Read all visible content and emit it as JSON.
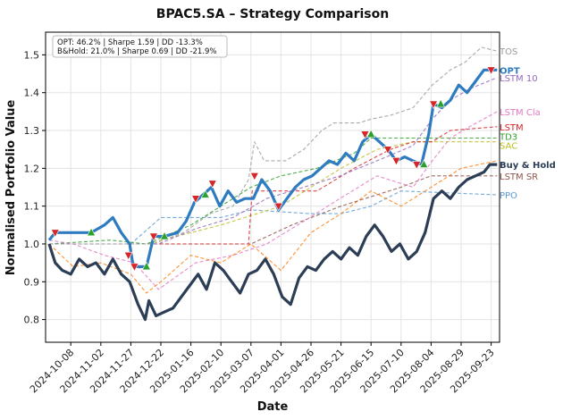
{
  "chart_data": {
    "type": "line",
    "title": "BPAC5.SA – Strategy Comparison",
    "xlabel": "Date",
    "ylabel": "Normalised Portfolio Value",
    "xlim": [
      "2024-09-17",
      "2025-09-30"
    ],
    "ylim": [
      0.74,
      1.56
    ],
    "x_ticks": [
      "2024-10-08",
      "2024-11-02",
      "2024-11-27",
      "2024-12-22",
      "2025-01-16",
      "2025-02-10",
      "2025-03-07",
      "2025-04-01",
      "2025-04-26",
      "2025-05-21",
      "2025-06-15",
      "2025-07-10",
      "2025-08-04",
      "2025-08-29",
      "2025-09-23"
    ],
    "y_ticks": [
      0.8,
      0.9,
      1.0,
      1.1,
      1.2,
      1.3,
      1.4,
      1.5
    ],
    "grid": true,
    "stats_box": {
      "lines": [
        "OPT: 46.2% | Sharpe 1.59 | DD -13.3%",
        "B&Hold: 21.0% | Sharpe 0.69 | DD -21.9%"
      ],
      "placement": "top-left"
    },
    "series": [
      {
        "name": "Buy & Hold",
        "color": "#2c3e55",
        "style": "solid-thick",
        "points": [
          [
            "2024-09-20",
            1.0
          ],
          [
            "2024-09-25",
            0.95
          ],
          [
            "2024-10-01",
            0.93
          ],
          [
            "2024-10-08",
            0.92
          ],
          [
            "2024-10-15",
            0.96
          ],
          [
            "2024-10-22",
            0.94
          ],
          [
            "2024-10-29",
            0.95
          ],
          [
            "2024-11-05",
            0.92
          ],
          [
            "2024-11-12",
            0.96
          ],
          [
            "2024-11-19",
            0.92
          ],
          [
            "2024-11-26",
            0.9
          ],
          [
            "2024-12-03",
            0.84
          ],
          [
            "2024-12-09",
            0.8
          ],
          [
            "2024-12-12",
            0.85
          ],
          [
            "2024-12-18",
            0.81
          ],
          [
            "2024-12-25",
            0.82
          ],
          [
            "2025-01-01",
            0.83
          ],
          [
            "2025-01-08",
            0.86
          ],
          [
            "2025-01-15",
            0.89
          ],
          [
            "2025-01-22",
            0.92
          ],
          [
            "2025-01-29",
            0.88
          ],
          [
            "2025-02-05",
            0.95
          ],
          [
            "2025-02-12",
            0.93
          ],
          [
            "2025-02-19",
            0.9
          ],
          [
            "2025-02-26",
            0.87
          ],
          [
            "2025-03-05",
            0.92
          ],
          [
            "2025-03-12",
            0.93
          ],
          [
            "2025-03-19",
            0.96
          ],
          [
            "2025-03-26",
            0.92
          ],
          [
            "2025-04-02",
            0.86
          ],
          [
            "2025-04-09",
            0.84
          ],
          [
            "2025-04-16",
            0.91
          ],
          [
            "2025-04-23",
            0.94
          ],
          [
            "2025-04-30",
            0.93
          ],
          [
            "2025-05-07",
            0.96
          ],
          [
            "2025-05-14",
            0.98
          ],
          [
            "2025-05-21",
            0.96
          ],
          [
            "2025-05-28",
            0.99
          ],
          [
            "2025-06-04",
            0.97
          ],
          [
            "2025-06-11",
            1.02
          ],
          [
            "2025-06-18",
            1.05
          ],
          [
            "2025-06-25",
            1.02
          ],
          [
            "2025-07-02",
            0.98
          ],
          [
            "2025-07-09",
            1.0
          ],
          [
            "2025-07-16",
            0.96
          ],
          [
            "2025-07-23",
            0.98
          ],
          [
            "2025-07-30",
            1.03
          ],
          [
            "2025-08-06",
            1.12
          ],
          [
            "2025-08-13",
            1.14
          ],
          [
            "2025-08-20",
            1.12
          ],
          [
            "2025-08-27",
            1.15
          ],
          [
            "2025-09-03",
            1.17
          ],
          [
            "2025-09-10",
            1.18
          ],
          [
            "2025-09-17",
            1.19
          ],
          [
            "2025-09-22",
            1.21
          ],
          [
            "2025-09-28",
            1.21
          ]
        ]
      },
      {
        "name": "OPT",
        "color": "#2e7bbf",
        "style": "solid-thick",
        "points": [
          [
            "2024-09-20",
            1.01
          ],
          [
            "2024-09-25",
            1.03
          ],
          [
            "2024-10-05",
            1.03
          ],
          [
            "2024-10-15",
            1.03
          ],
          [
            "2024-10-25",
            1.03
          ],
          [
            "2024-11-05",
            1.05
          ],
          [
            "2024-11-12",
            1.07
          ],
          [
            "2024-11-19",
            1.03
          ],
          [
            "2024-11-26",
            1.0
          ],
          [
            "2024-11-29",
            0.94
          ],
          [
            "2024-12-10",
            0.94
          ],
          [
            "2024-12-16",
            1.02
          ],
          [
            "2024-12-25",
            1.02
          ],
          [
            "2025-01-05",
            1.03
          ],
          [
            "2025-01-12",
            1.06
          ],
          [
            "2025-01-19",
            1.11
          ],
          [
            "2025-01-26",
            1.13
          ],
          [
            "2025-02-02",
            1.15
          ],
          [
            "2025-02-09",
            1.1
          ],
          [
            "2025-02-16",
            1.14
          ],
          [
            "2025-02-23",
            1.11
          ],
          [
            "2025-03-02",
            1.12
          ],
          [
            "2025-03-09",
            1.12
          ],
          [
            "2025-03-16",
            1.17
          ],
          [
            "2025-03-23",
            1.14
          ],
          [
            "2025-03-30",
            1.09
          ],
          [
            "2025-04-06",
            1.12
          ],
          [
            "2025-04-13",
            1.15
          ],
          [
            "2025-04-20",
            1.17
          ],
          [
            "2025-04-27",
            1.18
          ],
          [
            "2025-05-04",
            1.2
          ],
          [
            "2025-05-11",
            1.22
          ],
          [
            "2025-05-18",
            1.21
          ],
          [
            "2025-05-25",
            1.24
          ],
          [
            "2025-06-01",
            1.22
          ],
          [
            "2025-06-08",
            1.27
          ],
          [
            "2025-06-15",
            1.29
          ],
          [
            "2025-06-22",
            1.27
          ],
          [
            "2025-06-29",
            1.25
          ],
          [
            "2025-07-06",
            1.22
          ],
          [
            "2025-07-13",
            1.23
          ],
          [
            "2025-07-20",
            1.22
          ],
          [
            "2025-07-27",
            1.21
          ],
          [
            "2025-08-02",
            1.29
          ],
          [
            "2025-08-06",
            1.37
          ],
          [
            "2025-08-13",
            1.36
          ],
          [
            "2025-08-20",
            1.38
          ],
          [
            "2025-08-27",
            1.42
          ],
          [
            "2025-09-03",
            1.4
          ],
          [
            "2025-09-10",
            1.43
          ],
          [
            "2025-09-17",
            1.46
          ],
          [
            "2025-09-23",
            1.46
          ],
          [
            "2025-09-28",
            1.46
          ]
        ]
      },
      {
        "name": "TOS",
        "color": "#9b9b9b",
        "style": "dashed",
        "points": [
          [
            "2024-09-20",
            1.0
          ],
          [
            "2024-10-20",
            1.0
          ],
          [
            "2024-11-30",
            1.0
          ],
          [
            "2024-12-15",
            1.0
          ],
          [
            "2025-01-10",
            1.03
          ],
          [
            "2025-02-01",
            1.08
          ],
          [
            "2025-02-20",
            1.1
          ],
          [
            "2025-03-05",
            1.17
          ],
          [
            "2025-03-10",
            1.27
          ],
          [
            "2025-03-18",
            1.22
          ],
          [
            "2025-04-05",
            1.22
          ],
          [
            "2025-04-20",
            1.25
          ],
          [
            "2025-05-05",
            1.3
          ],
          [
            "2025-05-15",
            1.32
          ],
          [
            "2025-05-25",
            1.32
          ],
          [
            "2025-06-05",
            1.32
          ],
          [
            "2025-06-15",
            1.33
          ],
          [
            "2025-07-01",
            1.34
          ],
          [
            "2025-07-20",
            1.36
          ],
          [
            "2025-08-05",
            1.42
          ],
          [
            "2025-08-20",
            1.46
          ],
          [
            "2025-09-01",
            1.48
          ],
          [
            "2025-09-15",
            1.52
          ],
          [
            "2025-09-28",
            1.51
          ]
        ]
      },
      {
        "name": "LSTM 10",
        "color": "#9467bd",
        "style": "dashed",
        "points": [
          [
            "2024-09-20",
            1.0
          ],
          [
            "2024-10-20",
            1.0
          ],
          [
            "2024-11-30",
            1.0
          ],
          [
            "2024-12-20",
            1.0
          ],
          [
            "2025-01-20",
            1.04
          ],
          [
            "2025-02-20",
            1.07
          ],
          [
            "2025-03-20",
            1.12
          ],
          [
            "2025-04-20",
            1.15
          ],
          [
            "2025-05-20",
            1.18
          ],
          [
            "2025-06-20",
            1.22
          ],
          [
            "2025-07-20",
            1.26
          ],
          [
            "2025-08-05",
            1.33
          ],
          [
            "2025-08-20",
            1.38
          ],
          [
            "2025-09-05",
            1.41
          ],
          [
            "2025-09-28",
            1.44
          ]
        ]
      },
      {
        "name": "LSTM Cla",
        "color": "#e377c2",
        "style": "dashed",
        "points": [
          [
            "2024-09-20",
            1.01
          ],
          [
            "2024-10-10",
            1.0
          ],
          [
            "2024-11-05",
            0.97
          ],
          [
            "2024-11-30",
            0.95
          ],
          [
            "2024-12-20",
            0.88
          ],
          [
            "2025-01-20",
            0.95
          ],
          [
            "2025-02-20",
            0.97
          ],
          [
            "2025-03-20",
            1.0
          ],
          [
            "2025-04-20",
            1.06
          ],
          [
            "2025-05-20",
            1.12
          ],
          [
            "2025-06-20",
            1.18
          ],
          [
            "2025-07-20",
            1.15
          ],
          [
            "2025-08-05",
            1.22
          ],
          [
            "2025-08-20",
            1.28
          ],
          [
            "2025-09-05",
            1.31
          ],
          [
            "2025-09-28",
            1.35
          ]
        ]
      },
      {
        "name": "LSTM",
        "color": "#d62728",
        "style": "dashed",
        "points": [
          [
            "2024-09-20",
            1.0
          ],
          [
            "2024-11-30",
            1.0
          ],
          [
            "2025-01-15",
            1.0
          ],
          [
            "2025-03-05",
            1.0
          ],
          [
            "2025-03-08",
            1.14
          ],
          [
            "2025-05-01",
            1.14
          ],
          [
            "2025-06-01",
            1.2
          ],
          [
            "2025-07-01",
            1.25
          ],
          [
            "2025-07-20",
            1.27
          ],
          [
            "2025-08-05",
            1.27
          ],
          [
            "2025-08-20",
            1.3
          ],
          [
            "2025-09-28",
            1.31
          ]
        ]
      },
      {
        "name": "TD3",
        "color": "#2ca02c",
        "style": "dashed",
        "points": [
          [
            "2024-09-20",
            1.0
          ],
          [
            "2024-11-10",
            1.01
          ],
          [
            "2024-12-10",
            1.0
          ],
          [
            "2025-01-16",
            1.05
          ],
          [
            "2025-02-10",
            1.1
          ],
          [
            "2025-03-07",
            1.15
          ],
          [
            "2025-04-01",
            1.18
          ],
          [
            "2025-05-01",
            1.2
          ],
          [
            "2025-06-01",
            1.24
          ],
          [
            "2025-06-15",
            1.28
          ],
          [
            "2025-07-10",
            1.28
          ],
          [
            "2025-08-04",
            1.28
          ],
          [
            "2025-09-28",
            1.28
          ]
        ]
      },
      {
        "name": "SAC",
        "color": "#bcbd22",
        "style": "dashed",
        "points": [
          [
            "2024-09-20",
            1.0
          ],
          [
            "2024-12-10",
            1.0
          ],
          [
            "2025-02-10",
            1.05
          ],
          [
            "2025-04-01",
            1.1
          ],
          [
            "2025-05-21",
            1.2
          ],
          [
            "2025-06-20",
            1.25
          ],
          [
            "2025-07-20",
            1.27
          ],
          [
            "2025-09-28",
            1.27
          ]
        ]
      },
      {
        "name": "LSTM SR",
        "color": "#8c564b",
        "style": "dashed",
        "points": [
          [
            "2024-09-20",
            1.0
          ],
          [
            "2024-12-10",
            1.0
          ],
          [
            "2025-01-16",
            1.0
          ],
          [
            "2025-03-07",
            1.0
          ],
          [
            "2025-04-10",
            1.05
          ],
          [
            "2025-05-21",
            1.1
          ],
          [
            "2025-07-10",
            1.15
          ],
          [
            "2025-08-04",
            1.18
          ],
          [
            "2025-09-28",
            1.18
          ]
        ]
      },
      {
        "name": "",
        "color": "#ff7f0e",
        "style": "dashed",
        "points": [
          [
            "2024-09-20",
            1.0
          ],
          [
            "2024-10-10",
            0.94
          ],
          [
            "2024-11-02",
            0.95
          ],
          [
            "2024-11-27",
            0.92
          ],
          [
            "2024-12-10",
            0.87
          ],
          [
            "2024-12-22",
            0.9
          ],
          [
            "2025-01-16",
            0.97
          ],
          [
            "2025-02-10",
            0.95
          ],
          [
            "2025-03-07",
            1.0
          ],
          [
            "2025-04-01",
            0.93
          ],
          [
            "2025-04-26",
            1.03
          ],
          [
            "2025-05-21",
            1.08
          ],
          [
            "2025-06-15",
            1.14
          ],
          [
            "2025-07-10",
            1.1
          ],
          [
            "2025-08-04",
            1.15
          ],
          [
            "2025-08-29",
            1.2
          ],
          [
            "2025-09-28",
            1.22
          ]
        ]
      },
      {
        "name": "PPO",
        "color": "#5b9bd5",
        "style": "dashed",
        "points": [
          [
            "2024-09-20",
            1.0
          ],
          [
            "2024-11-27",
            1.0
          ],
          [
            "2024-12-22",
            1.07
          ],
          [
            "2025-02-10",
            1.07
          ],
          [
            "2025-03-07",
            1.09
          ],
          [
            "2025-04-26",
            1.08
          ],
          [
            "2025-05-21",
            1.08
          ],
          [
            "2025-06-15",
            1.1
          ],
          [
            "2025-07-10",
            1.14
          ],
          [
            "2025-09-28",
            1.13
          ]
        ]
      }
    ],
    "markers": [
      {
        "x": "2024-09-25",
        "y": 1.03,
        "kind": "sell"
      },
      {
        "x": "2024-10-25",
        "y": 1.03,
        "kind": "buy"
      },
      {
        "x": "2024-11-25",
        "y": 0.97,
        "kind": "sell"
      },
      {
        "x": "2024-11-30",
        "y": 0.94,
        "kind": "sell"
      },
      {
        "x": "2024-12-10",
        "y": 0.94,
        "kind": "buy"
      },
      {
        "x": "2024-12-16",
        "y": 1.02,
        "kind": "sell"
      },
      {
        "x": "2024-12-25",
        "y": 1.02,
        "kind": "buy"
      },
      {
        "x": "2025-01-20",
        "y": 1.12,
        "kind": "sell"
      },
      {
        "x": "2025-01-28",
        "y": 1.13,
        "kind": "buy"
      },
      {
        "x": "2025-02-03",
        "y": 1.16,
        "kind": "sell"
      },
      {
        "x": "2025-03-10",
        "y": 1.18,
        "kind": "sell"
      },
      {
        "x": "2025-03-30",
        "y": 1.1,
        "kind": "sell"
      },
      {
        "x": "2025-06-10",
        "y": 1.29,
        "kind": "sell"
      },
      {
        "x": "2025-06-15",
        "y": 1.29,
        "kind": "buy"
      },
      {
        "x": "2025-06-29",
        "y": 1.25,
        "kind": "sell"
      },
      {
        "x": "2025-07-06",
        "y": 1.22,
        "kind": "sell"
      },
      {
        "x": "2025-07-23",
        "y": 1.21,
        "kind": "sell"
      },
      {
        "x": "2025-07-29",
        "y": 1.21,
        "kind": "buy"
      },
      {
        "x": "2025-08-06",
        "y": 1.37,
        "kind": "sell"
      },
      {
        "x": "2025-08-12",
        "y": 1.37,
        "kind": "buy"
      },
      {
        "x": "2025-09-23",
        "y": 1.46,
        "kind": "sell"
      }
    ],
    "buy_color": "#2ca02c",
    "sell_color": "#d62728"
  }
}
